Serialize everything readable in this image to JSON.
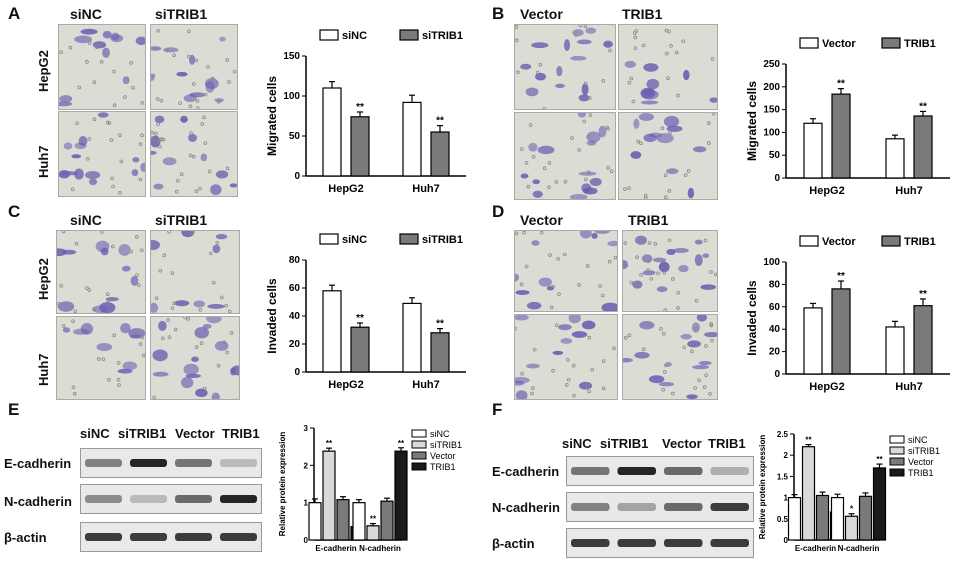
{
  "panels": {
    "A": {
      "letter": "A",
      "cond1": "siNC",
      "cond2": "siTRIB1",
      "row1": "HepG2",
      "row2": "Huh7"
    },
    "B": {
      "letter": "B",
      "cond1": "Vector",
      "cond2": "TRIB1"
    },
    "C": {
      "letter": "C",
      "cond1": "siNC",
      "cond2": "siTRIB1",
      "row1": "HepG2",
      "row2": "Huh7"
    },
    "D": {
      "letter": "D",
      "cond1": "Vector",
      "cond2": "TRIB1"
    },
    "E": {
      "letter": "E",
      "lanes": [
        "siNC",
        "siTRIB1",
        "Vector",
        "TRIB1"
      ],
      "bands": [
        "E-cadherin",
        "N-cadherin",
        "β-actin"
      ]
    },
    "F": {
      "letter": "F",
      "lanes": [
        "siNC",
        "siTRIB1",
        "Vector",
        "TRIB1"
      ],
      "bands": [
        "E-cadherin",
        "N-cadherin",
        "β-actin"
      ]
    }
  },
  "colors": {
    "white_bar": "#ffffff",
    "gray_bar": "#7a7a7a",
    "light_bar": "#d9d9d9",
    "black_bar": "#1a1a1a",
    "cell_stain": "#6a5cb0",
    "field_bg": "#dcdcd4"
  },
  "chart_data": [
    {
      "id": "A",
      "type": "bar",
      "categories": [
        "HepG2",
        "Huh7"
      ],
      "ylabel": "Migrated cells",
      "ylim": [
        0,
        150
      ],
      "yticks": [
        0,
        50,
        100,
        150
      ],
      "series": [
        {
          "name": "siNC",
          "values": [
            110,
            92
          ],
          "err": [
            8,
            9
          ],
          "sig": [
            "",
            ""
          ]
        },
        {
          "name": "siTRIB1",
          "values": [
            74,
            55
          ],
          "err": [
            6,
            8
          ],
          "sig": [
            "**",
            "**"
          ]
        }
      ]
    },
    {
      "id": "B",
      "type": "bar",
      "categories": [
        "HepG2",
        "Huh7"
      ],
      "ylabel": "Migrated cells",
      "ylim": [
        0,
        250
      ],
      "yticks": [
        0,
        50,
        100,
        150,
        200,
        250
      ],
      "series": [
        {
          "name": "Vector",
          "values": [
            120,
            86
          ],
          "err": [
            10,
            8
          ],
          "sig": [
            "",
            ""
          ]
        },
        {
          "name": "TRIB1",
          "values": [
            184,
            136
          ],
          "err": [
            12,
            10
          ],
          "sig": [
            "**",
            "**"
          ]
        }
      ]
    },
    {
      "id": "C",
      "type": "bar",
      "categories": [
        "HepG2",
        "Huh7"
      ],
      "ylabel": "Invaded cells",
      "ylim": [
        0,
        80
      ],
      "yticks": [
        0,
        20,
        40,
        60,
        80
      ],
      "series": [
        {
          "name": "siNC",
          "values": [
            58,
            49
          ],
          "err": [
            4,
            4
          ],
          "sig": [
            "",
            ""
          ]
        },
        {
          "name": "siTRIB1",
          "values": [
            32,
            28
          ],
          "err": [
            3,
            3
          ],
          "sig": [
            "**",
            "**"
          ]
        }
      ]
    },
    {
      "id": "D",
      "type": "bar",
      "categories": [
        "HepG2",
        "Huh7"
      ],
      "ylabel": "Invaded cells",
      "ylim": [
        0,
        100
      ],
      "yticks": [
        0,
        20,
        40,
        60,
        80,
        100
      ],
      "series": [
        {
          "name": "Vector",
          "values": [
            59,
            42
          ],
          "err": [
            4,
            5
          ],
          "sig": [
            "",
            ""
          ]
        },
        {
          "name": "TRIB1",
          "values": [
            76,
            61
          ],
          "err": [
            7,
            6
          ],
          "sig": [
            "**",
            "**"
          ]
        }
      ]
    },
    {
      "id": "E",
      "type": "bar",
      "categories": [
        "E-cadherin",
        "N-cadherin"
      ],
      "ylabel": "Relative protein expression",
      "ylim": [
        0,
        3
      ],
      "yticks": [
        0,
        1,
        2,
        3
      ],
      "series": [
        {
          "name": "siNC",
          "values": [
            1.0,
            1.0
          ],
          "err": [
            0.1,
            0.08
          ],
          "sig": [
            "",
            ""
          ]
        },
        {
          "name": "siTRIB1",
          "values": [
            2.38,
            0.38
          ],
          "err": [
            0.08,
            0.06
          ],
          "sig": [
            "**",
            "**"
          ]
        },
        {
          "name": "Vector",
          "values": [
            1.08,
            1.04
          ],
          "err": [
            0.08,
            0.08
          ],
          "sig": [
            "",
            ""
          ]
        },
        {
          "name": "TRIB1",
          "values": [
            0.36,
            2.38
          ],
          "err": [
            0.05,
            0.09
          ],
          "sig": [
            "**",
            "**"
          ]
        }
      ]
    },
    {
      "id": "F",
      "type": "bar",
      "categories": [
        "E-cadherin",
        "N-cadherin"
      ],
      "ylabel": "Relative protein expression",
      "ylim": [
        0,
        2.5
      ],
      "yticks": [
        0,
        0.5,
        1.0,
        1.5,
        2.0,
        2.5
      ],
      "series": [
        {
          "name": "siNC",
          "values": [
            1.0,
            1.0
          ],
          "err": [
            0.07,
            0.08
          ],
          "sig": [
            "",
            ""
          ]
        },
        {
          "name": "siTRIB1",
          "values": [
            2.2,
            0.56
          ],
          "err": [
            0.05,
            0.06
          ],
          "sig": [
            "**",
            "*"
          ]
        },
        {
          "name": "Vector",
          "values": [
            1.05,
            1.03
          ],
          "err": [
            0.08,
            0.08
          ],
          "sig": [
            "",
            ""
          ]
        },
        {
          "name": "TRIB1",
          "values": [
            0.66,
            1.7
          ],
          "err": [
            0.06,
            0.09
          ],
          "sig": [
            "*",
            "**"
          ]
        }
      ]
    }
  ]
}
